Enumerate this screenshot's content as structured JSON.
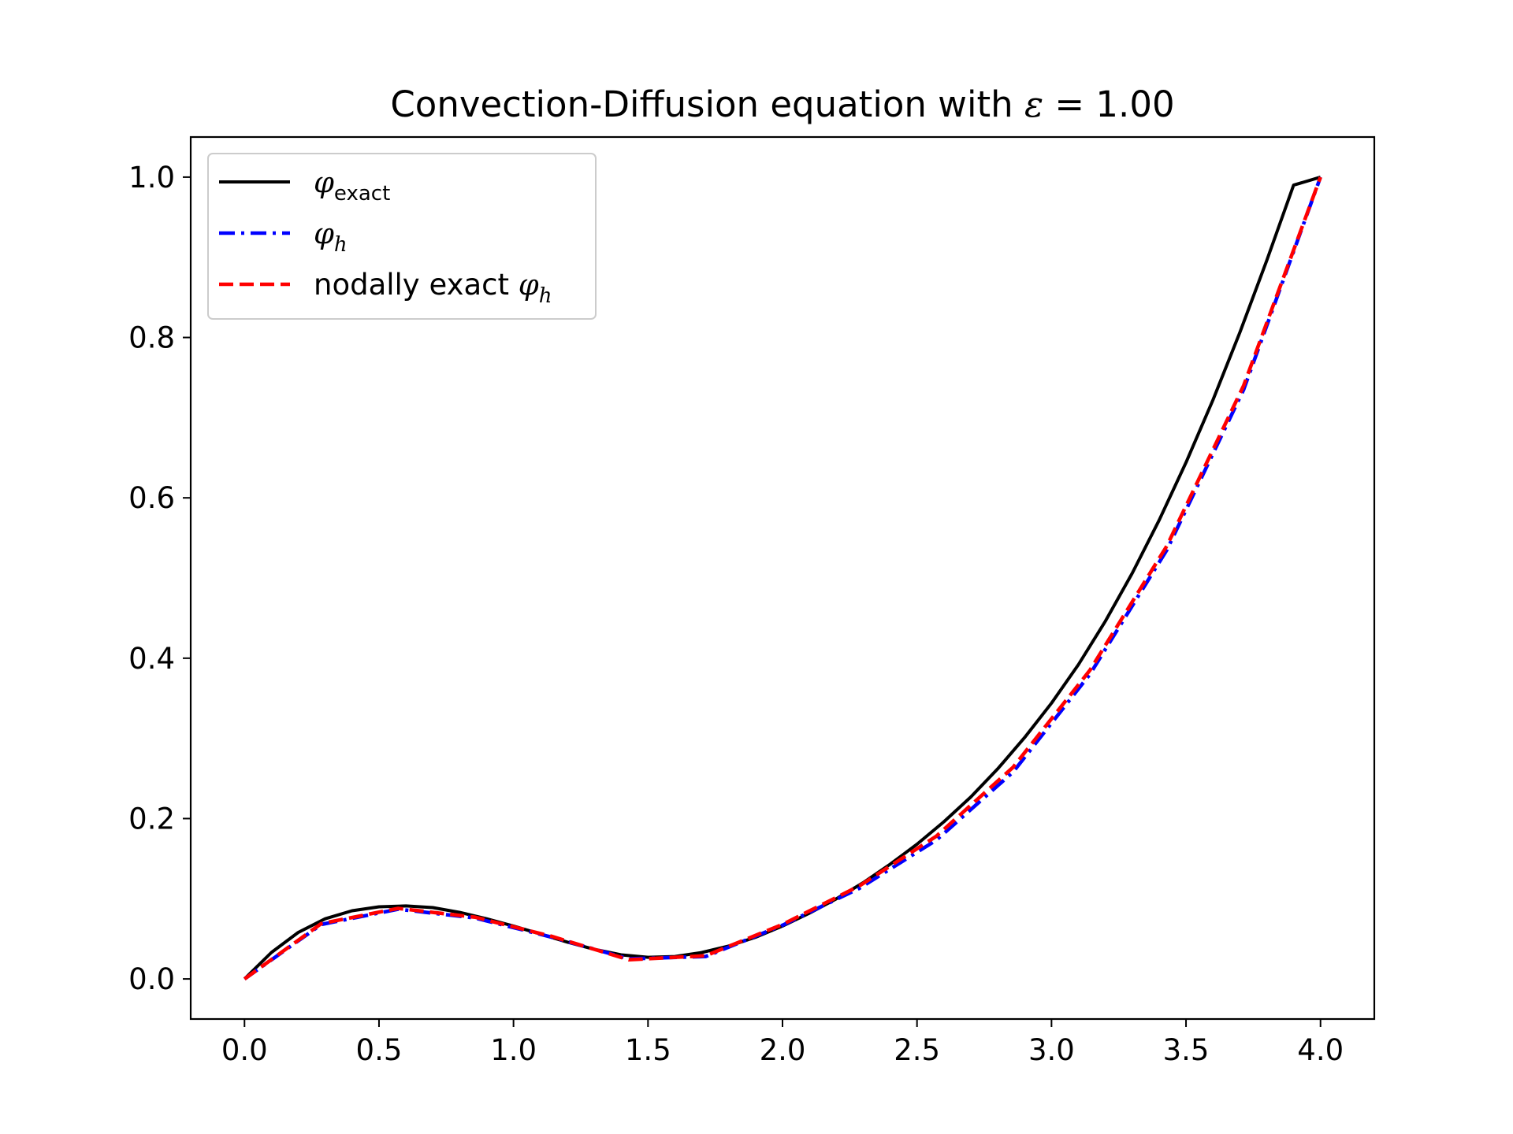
{
  "chart_data": {
    "type": "line",
    "title": "Convection-Diffusion equation with ε = 1.00",
    "title_parts": {
      "text": "Convection-Diffusion equation with ",
      "symbol": "ε",
      "value": " = 1.00"
    },
    "xlim": [
      -0.2,
      4.2
    ],
    "ylim": [
      -0.05,
      1.05
    ],
    "xticks": [
      "0.0",
      "0.5",
      "1.0",
      "1.5",
      "2.0",
      "2.5",
      "3.0",
      "3.5",
      "4.0"
    ],
    "yticks": [
      "0.0",
      "0.2",
      "0.4",
      "0.6",
      "0.8",
      "1.0"
    ],
    "grid": false,
    "legend_position": "upper-left",
    "series": [
      {
        "key": "exact",
        "name": "φ_exact",
        "label_symbol": "φ",
        "label_sub": "exact",
        "label_prefix": "",
        "color": "#000000",
        "style": "solid",
        "x": [
          0.0,
          0.1,
          0.2,
          0.3,
          0.4,
          0.5,
          0.6,
          0.7,
          0.8,
          0.9,
          1.0,
          1.1,
          1.2,
          1.3,
          1.4,
          1.5,
          1.6,
          1.7,
          1.8,
          1.9,
          2.0,
          2.1,
          2.2,
          2.3,
          2.4,
          2.5,
          2.6,
          2.7,
          2.8,
          2.9,
          3.0,
          3.1,
          3.2,
          3.3,
          3.4,
          3.5,
          3.6,
          3.7,
          3.8,
          3.9,
          4.0
        ],
        "y": [
          0.0,
          0.033,
          0.058,
          0.075,
          0.085,
          0.09,
          0.091,
          0.089,
          0.083,
          0.075,
          0.066,
          0.056,
          0.046,
          0.037,
          0.03,
          0.027,
          0.028,
          0.033,
          0.041,
          0.052,
          0.066,
          0.082,
          0.1,
          0.12,
          0.143,
          0.168,
          0.196,
          0.227,
          0.262,
          0.301,
          0.344,
          0.392,
          0.446,
          0.506,
          0.572,
          0.644,
          0.722,
          0.806,
          0.896,
          0.99,
          1.0
        ]
      },
      {
        "key": "fem",
        "name": "φ_h",
        "label_symbol": "φ",
        "label_sub": "h",
        "label_prefix": "",
        "color": "#0000ff",
        "style": "dashdot",
        "x": [
          0.0,
          0.2857,
          0.5714,
          0.8571,
          1.1429,
          1.4286,
          1.7143,
          2.0,
          2.2857,
          2.5714,
          2.8571,
          3.1429,
          3.4286,
          3.7143,
          4.0
        ],
        "y": [
          0.0,
          0.068,
          0.087,
          0.076,
          0.052,
          0.025,
          0.028,
          0.067,
          0.113,
          0.173,
          0.258,
          0.38,
          0.535,
          0.735,
          1.0
        ]
      },
      {
        "key": "nodal",
        "name": "nodally exact φ_h",
        "label_symbol": "φ",
        "label_sub": "h",
        "label_prefix": "nodally exact ",
        "color": "#ff0000",
        "style": "dashed",
        "x": [
          0.0,
          0.2857,
          0.5714,
          0.8571,
          1.1429,
          1.4286,
          1.7143,
          2.0,
          2.2857,
          2.5714,
          2.8571,
          3.1429,
          3.4286,
          3.7143,
          4.0
        ],
        "y": [
          0.0,
          0.069,
          0.088,
          0.077,
          0.053,
          0.024,
          0.029,
          0.068,
          0.116,
          0.178,
          0.264,
          0.385,
          0.54,
          0.74,
          1.0
        ]
      }
    ]
  }
}
